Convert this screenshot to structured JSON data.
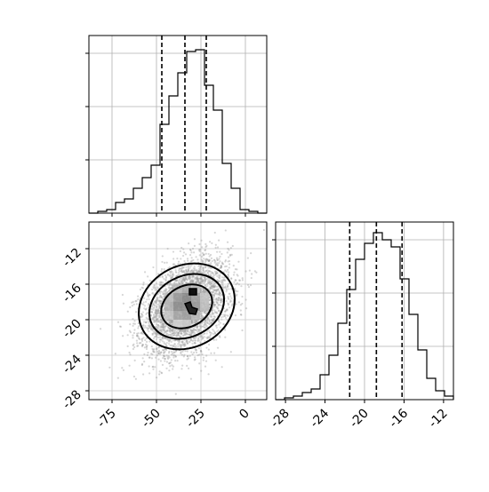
{
  "chart_data": [
    {
      "panel": "top-left",
      "type": "histogram",
      "title": "",
      "xlabel": "",
      "ylabel": "",
      "xlim": [
        -88,
        12
      ],
      "ylim": [
        0,
        1.0
      ],
      "grid": true,
      "show_x_ticklabels": false,
      "show_y_ticklabels": false,
      "x_ticks": [
        -75,
        -50,
        -25,
        0
      ],
      "y_ticks": [
        0,
        0.3,
        0.6,
        0.9
      ],
      "bins_edges": [
        -88,
        -83,
        -78,
        -73,
        -68,
        -63,
        -58,
        -53,
        -48,
        -43,
        -38,
        -33,
        -28,
        -23,
        -18,
        -13,
        -8,
        -3,
        2,
        7,
        12
      ],
      "values": [
        0,
        0.01,
        0.02,
        0.06,
        0.08,
        0.14,
        0.2,
        0.27,
        0.5,
        0.66,
        0.79,
        0.91,
        0.92,
        0.72,
        0.58,
        0.28,
        0.14,
        0.02,
        0.01,
        0
      ],
      "quantile_lines": [
        -47,
        -34,
        -22
      ]
    },
    {
      "panel": "bottom-left",
      "type": "scatter-density",
      "title": "",
      "xlabel": "",
      "ylabel": "",
      "xlim": [
        -88,
        12
      ],
      "ylim": [
        -29,
        -9
      ],
      "grid": true,
      "x_ticks": [
        "-75",
        "-50",
        "-25",
        "0"
      ],
      "y_ticks": [
        "-12",
        "-16",
        "-20",
        "-24",
        "-28"
      ],
      "x_tick_values": [
        -75,
        -50,
        -25,
        0
      ],
      "y_tick_values": [
        -12,
        -16,
        -20,
        -24,
        -28
      ],
      "center": [
        -33,
        -18.5
      ],
      "sigma": [
        12,
        2.6
      ],
      "correlation": 0.35,
      "n_points": 4000,
      "contour_levels": [
        "outer",
        "middle",
        "inner",
        "core"
      ]
    },
    {
      "panel": "bottom-right",
      "type": "histogram",
      "title": "",
      "xlabel": "",
      "ylabel": "",
      "xlim": [
        -29,
        -11
      ],
      "ylim": [
        0,
        1.0
      ],
      "grid": true,
      "show_y_ticklabels": false,
      "x_ticks": [
        "-28",
        "-24",
        "-20",
        "-16",
        "-12"
      ],
      "x_tick_values": [
        -28,
        -24,
        -20,
        -16,
        -12
      ],
      "y_ticks": [
        0,
        0.3,
        0.6,
        0.9
      ],
      "bins_edges": [
        -29,
        -28.1,
        -27.2,
        -26.3,
        -25.4,
        -24.5,
        -23.6,
        -22.7,
        -21.8,
        -20.9,
        -20,
        -19.1,
        -18.2,
        -17.3,
        -16.4,
        -15.5,
        -14.6,
        -13.7,
        -12.8,
        -11.9,
        -11
      ],
      "values": [
        0,
        0.01,
        0.02,
        0.04,
        0.06,
        0.14,
        0.25,
        0.43,
        0.62,
        0.79,
        0.88,
        0.94,
        0.9,
        0.86,
        0.68,
        0.48,
        0.28,
        0.12,
        0.05,
        0.02
      ],
      "quantile_lines": [
        -21.5,
        -18.8,
        -16.2
      ]
    }
  ]
}
